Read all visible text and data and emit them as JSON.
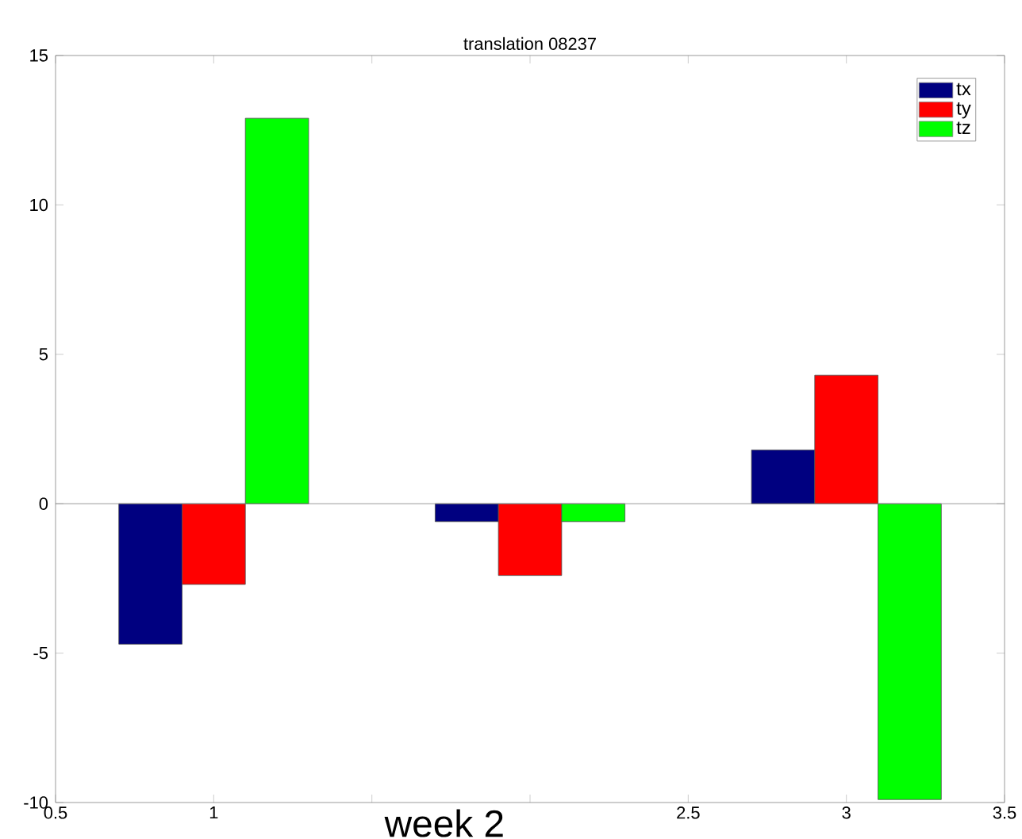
{
  "chart_data": {
    "type": "bar",
    "title": "translation 08237",
    "x": [
      1,
      2,
      3
    ],
    "series": [
      {
        "name": "tx",
        "color": "#000080",
        "values": [
          -4.7,
          -0.6,
          1.8
        ]
      },
      {
        "name": "ty",
        "color": "#ff0000",
        "values": [
          -2.7,
          -2.4,
          4.3
        ]
      },
      {
        "name": "tz",
        "color": "#00ff00",
        "values": [
          12.9,
          -0.6,
          -9.9
        ]
      }
    ],
    "xlim": [
      0.5,
      3.5
    ],
    "ylim": [
      -10,
      15
    ],
    "xticks": [
      0.5,
      1,
      {
        "value": 1.5,
        "label": null
      },
      {
        "value": 2,
        "label": null
      },
      2.5,
      3,
      3.5
    ],
    "yticks": [
      -10,
      -5,
      0,
      5,
      10,
      15
    ],
    "legend": "top right",
    "annotations": [
      {
        "text": "week 2"
      }
    ]
  }
}
